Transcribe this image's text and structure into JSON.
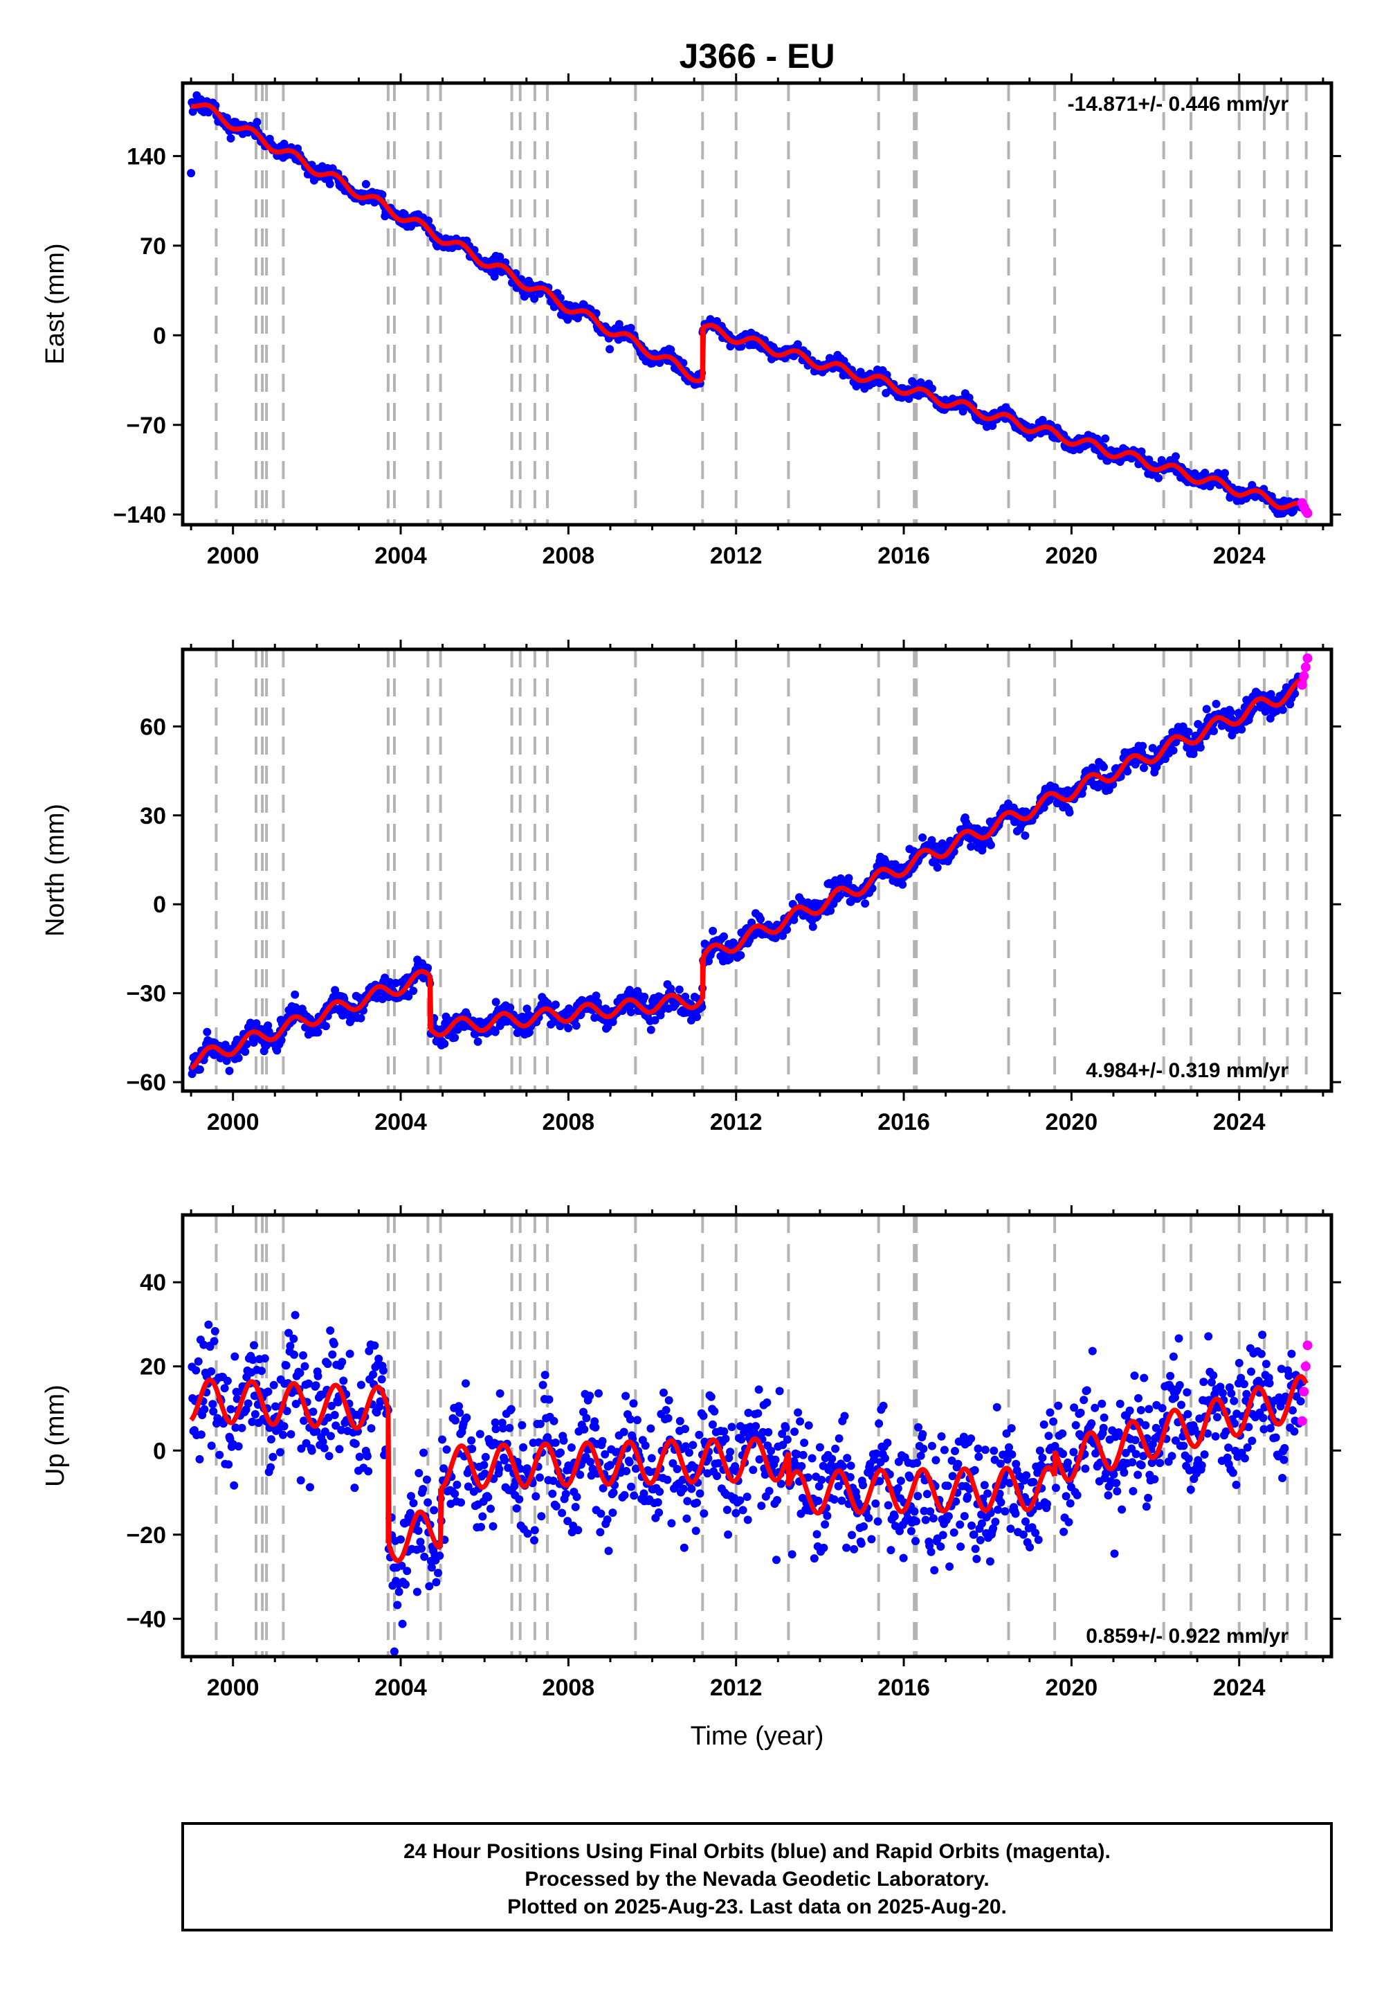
{
  "title": "J366 - EU",
  "colors": {
    "final_orbits": "#0000ff",
    "rapid_orbits": "#ff00ff",
    "model": "#ff0000",
    "event_lines": "#b4b4b4",
    "frame": "#000000"
  },
  "xlabel": "Time (year)",
  "footer": {
    "line1": "24 Hour Positions Using Final Orbits (blue) and Rapid Orbits (magenta).",
    "line2": "Processed by the Nevada Geodetic Laboratory.",
    "line3": "Plotted on 2025-Aug-23. Last data on 2025-Aug-20."
  },
  "chart_data": [
    {
      "type": "scatter",
      "component": "east",
      "ylabel": "East (mm)",
      "xlim": [
        1998.8,
        2026.2
      ],
      "ylim": [
        -148,
        197
      ],
      "x_ticks": [
        2000,
        2004,
        2008,
        2012,
        2016,
        2020,
        2024
      ],
      "x_tick_labels": [
        "2000",
        "2004",
        "2008",
        "2012",
        "2016",
        "2020",
        "2024"
      ],
      "y_ticks": [
        -140,
        -70,
        0,
        70,
        140
      ],
      "y_tick_labels": [
        "−140",
        "−70",
        "0",
        "70",
        "140"
      ],
      "rate_label": "-14.871+/- 0.446 mm/yr",
      "rate_position": "top-right",
      "grid": false,
      "event_lines": [
        1999.6,
        2000.55,
        2000.7,
        2000.8,
        2001.2,
        2003.7,
        2003.85,
        2004.65,
        2004.95,
        2006.65,
        2006.85,
        2007.2,
        2007.5,
        2009.6,
        2011.2,
        2012.0,
        2013.25,
        2015.4,
        2016.25,
        2016.3,
        2018.5,
        2019.6,
        2022.2,
        2022.85,
        2024.0,
        2024.6,
        2025.15,
        2025.6
      ],
      "model": {
        "rate": -14.871,
        "breaks": [
          {
            "t0": 1999.0,
            "t1": 2011.2,
            "y0": 183,
            "y1": -35
          },
          {
            "t0": 2011.2,
            "t1": 2025.6,
            "y0": 6,
            "y1": -137
          }
        ],
        "annual_amplitude": 4
      },
      "series": [
        {
          "name": "Final Orbits (blue)",
          "x_range": [
            1999.0,
            2025.5
          ],
          "scatter_sd": 3
        },
        {
          "name": "Rapid Orbits (magenta)",
          "x_range": [
            2025.5,
            2025.63
          ],
          "values": [
            -131,
            -134,
            -137,
            -139
          ]
        }
      ]
    },
    {
      "type": "scatter",
      "component": "north",
      "ylabel": "North (mm)",
      "xlim": [
        1998.8,
        2026.2
      ],
      "ylim": [
        -63,
        86
      ],
      "x_ticks": [
        2000,
        2004,
        2008,
        2012,
        2016,
        2020,
        2024
      ],
      "x_tick_labels": [
        "2000",
        "2004",
        "2008",
        "2012",
        "2016",
        "2020",
        "2024"
      ],
      "y_ticks": [
        -60,
        -30,
        0,
        30,
        60
      ],
      "y_tick_labels": [
        "−60",
        "−30",
        "0",
        "30",
        "60"
      ],
      "rate_label": "4.984+/- 0.319 mm/yr",
      "rate_position": "bottom-right",
      "grid": false,
      "event_lines": [
        1999.6,
        2000.55,
        2000.7,
        2000.8,
        2001.2,
        2003.7,
        2003.85,
        2004.65,
        2004.95,
        2006.65,
        2006.85,
        2007.2,
        2007.5,
        2009.6,
        2011.2,
        2012.0,
        2013.25,
        2015.4,
        2016.25,
        2016.3,
        2018.5,
        2019.6,
        2022.2,
        2022.85,
        2024.0,
        2024.6,
        2025.15,
        2025.6
      ],
      "model": {
        "breaks": [
          {
            "t0": 1999.0,
            "t1": 2004.7,
            "y0": -53,
            "y1": -24
          },
          {
            "t0": 2004.7,
            "t1": 2011.2,
            "y0": -42,
            "y1": -32
          },
          {
            "t0": 2011.2,
            "t1": 2025.6,
            "y0": -18,
            "y1": 74
          }
        ],
        "annual_amplitude": 2.5
      },
      "series": [
        {
          "name": "Final Orbits (blue)",
          "x_range": [
            1999.0,
            2025.5
          ],
          "scatter_sd": 2
        },
        {
          "name": "Rapid Orbits (magenta)",
          "x_range": [
            2025.5,
            2025.63
          ],
          "values": [
            74,
            77,
            80,
            83
          ]
        }
      ]
    },
    {
      "type": "scatter",
      "component": "up",
      "ylabel": "Up (mm)",
      "xlim": [
        1998.8,
        2026.2
      ],
      "ylim": [
        -49,
        56
      ],
      "x_ticks": [
        2000,
        2004,
        2008,
        2012,
        2016,
        2020,
        2024
      ],
      "x_tick_labels": [
        "2000",
        "2004",
        "2008",
        "2012",
        "2016",
        "2020",
        "2024"
      ],
      "y_ticks": [
        -40,
        -20,
        0,
        20,
        40
      ],
      "y_tick_labels": [
        "−40",
        "−20",
        "0",
        "20",
        "40"
      ],
      "rate_label": "0.859+/- 0.922 mm/yr",
      "rate_position": "bottom-right",
      "grid": false,
      "event_lines": [
        1999.6,
        2000.55,
        2000.7,
        2000.8,
        2001.2,
        2003.7,
        2003.85,
        2004.65,
        2004.95,
        2006.65,
        2006.85,
        2007.2,
        2007.5,
        2009.6,
        2011.2,
        2012.0,
        2013.25,
        2015.4,
        2016.25,
        2016.3,
        2018.5,
        2019.6,
        2022.2,
        2022.85,
        2024.0,
        2024.6,
        2025.15,
        2025.6
      ],
      "model": {
        "breaks": [
          {
            "t0": 1999.0,
            "t1": 2003.7,
            "y0": 12,
            "y1": 10
          },
          {
            "t0": 2003.7,
            "t1": 2004.95,
            "y0": -22,
            "y1": -18
          },
          {
            "t0": 2004.95,
            "t1": 2013.25,
            "y0": -4,
            "y1": -2
          },
          {
            "t0": 2013.25,
            "t1": 2019.6,
            "y0": -10,
            "y1": -9
          },
          {
            "t0": 2019.6,
            "t1": 2025.6,
            "y0": -3,
            "y1": 13
          }
        ],
        "annual_amplitude": 5
      },
      "series": [
        {
          "name": "Final Orbits (blue)",
          "x_range": [
            1999.0,
            2025.5
          ],
          "scatter_sd": 7
        },
        {
          "name": "Rapid Orbits (magenta)",
          "x_range": [
            2025.5,
            2025.63
          ],
          "values": [
            7,
            14,
            20,
            25
          ]
        }
      ]
    }
  ]
}
